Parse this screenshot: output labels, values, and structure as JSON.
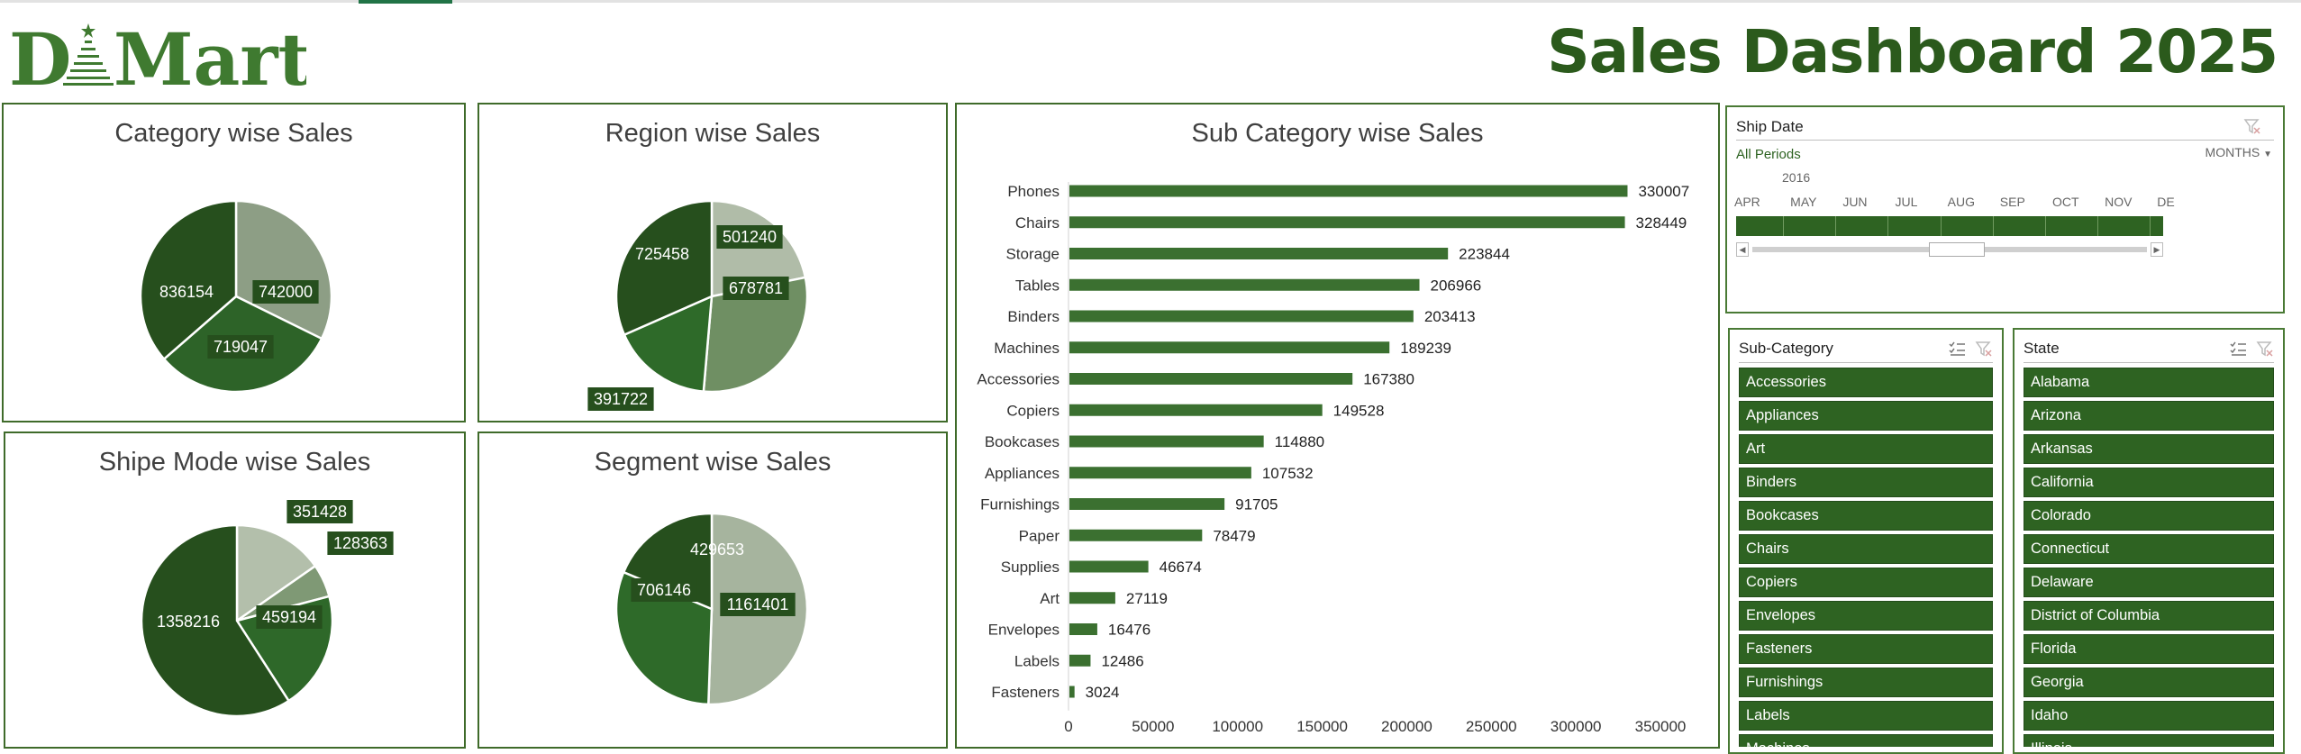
{
  "header": {
    "logo_text": "DMart",
    "title": "Sales Dashboard 2025"
  },
  "colors": {
    "brand": "#2b5a1c",
    "accent": "#2e6322",
    "bar": "#3b7030",
    "slice_dark": "#264f1d",
    "slice_mid": "#2f6a29",
    "slice_light": "#8aa07f",
    "slice_pale": "#b0bda7"
  },
  "category_chart": {
    "chart_data": {
      "type": "pie",
      "title": "Category wise Sales",
      "slices": [
        {
          "value": 742000,
          "color": "#8d9e85"
        },
        {
          "value": 719047,
          "color": "#2d6328"
        },
        {
          "value": 836154,
          "color": "#264f1d"
        }
      ]
    }
  },
  "region_chart": {
    "chart_data": {
      "type": "pie",
      "title": "Region wise Sales",
      "slices": [
        {
          "value": 501240,
          "color": "#b0bca8"
        },
        {
          "value": 678781,
          "color": "#6f8f63"
        },
        {
          "value": 391722,
          "color": "#2e6a29"
        },
        {
          "value": 725458,
          "color": "#264f1d"
        }
      ]
    }
  },
  "shipmode_chart": {
    "chart_data": {
      "type": "pie",
      "title": "Shipe Mode wise Sales",
      "slices": [
        {
          "value": 351428,
          "color": "#b3bfab"
        },
        {
          "value": 128363,
          "color": "#7f9975"
        },
        {
          "value": 459194,
          "color": "#2e6829"
        },
        {
          "value": 1358216,
          "color": "#264f1d"
        }
      ]
    }
  },
  "segment_chart": {
    "chart_data": {
      "type": "pie",
      "title": "Segment wise Sales",
      "slices": [
        {
          "value": 1161401,
          "color": "#a6b49e"
        },
        {
          "value": 706146,
          "color": "#2e6a29"
        },
        {
          "value": 429653,
          "color": "#264f1d"
        }
      ]
    }
  },
  "subcategory_chart": {
    "chart_data": {
      "type": "bar",
      "orientation": "horizontal",
      "title": "Sub Category wise Sales",
      "categories": [
        "Phones",
        "Chairs",
        "Storage",
        "Tables",
        "Binders",
        "Machines",
        "Accessories",
        "Copiers",
        "Bookcases",
        "Appliances",
        "Furnishings",
        "Paper",
        "Supplies",
        "Art",
        "Envelopes",
        "Labels",
        "Fasteners"
      ],
      "values": [
        330007,
        328449,
        223844,
        206966,
        203413,
        189239,
        167380,
        149528,
        114880,
        107532,
        91705,
        78479,
        46674,
        27119,
        16476,
        12486,
        3024
      ],
      "xlim": [
        0,
        350000
      ],
      "xticks": [
        "0",
        "50000",
        "100000",
        "150000",
        "200000",
        "250000",
        "300000",
        "350000"
      ],
      "data_labels": true,
      "grid": false,
      "legend": "none"
    }
  },
  "ship_date_slicer": {
    "title": "Ship Date",
    "selection": "All Periods",
    "level": "MONTHS",
    "year": "2016",
    "months": [
      "APR",
      "MAY",
      "JUN",
      "JUL",
      "AUG",
      "SEP",
      "OCT",
      "NOV",
      "DE"
    ]
  },
  "subcategory_slicer": {
    "title": "Sub-Category",
    "items": [
      "Accessories",
      "Appliances",
      "Art",
      "Binders",
      "Bookcases",
      "Chairs",
      "Copiers",
      "Envelopes",
      "Fasteners",
      "Furnishings",
      "Labels",
      "Machines"
    ]
  },
  "state_slicer": {
    "title": "State",
    "items": [
      "Alabama",
      "Arizona",
      "Arkansas",
      "California",
      "Colorado",
      "Connecticut",
      "Delaware",
      "District of Columbia",
      "Florida",
      "Georgia",
      "Idaho",
      "Illinois"
    ]
  }
}
